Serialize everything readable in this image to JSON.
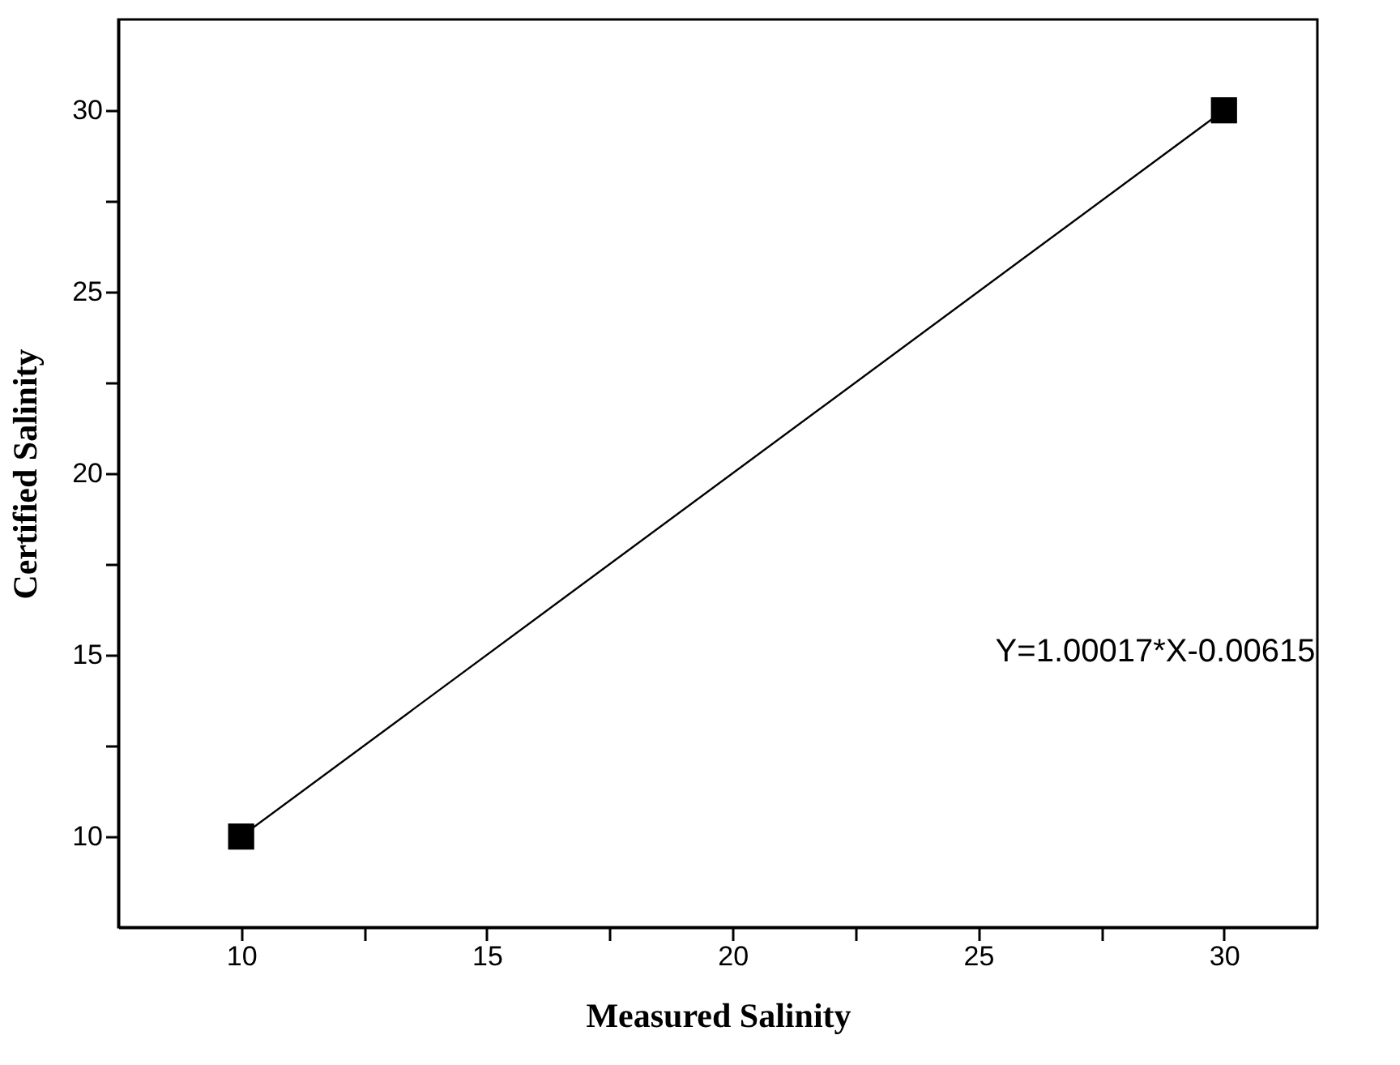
{
  "chart_data": {
    "type": "line",
    "xlabel": "Measured Salinity",
    "ylabel": "Certified Salinity",
    "x": [
      10,
      30
    ],
    "series": [
      {
        "color": "#000000",
        "values": [
          10,
          30
        ]
      }
    ],
    "marker": "square",
    "line_style": "solid",
    "grid": false,
    "xlim": [
      7.5,
      31.9
    ],
    "ylim": [
      7.5,
      32.5
    ],
    "xticks": [
      10,
      {
        "value": 12.5,
        "label": null
      },
      15,
      {
        "value": 17.5,
        "label": null
      },
      20,
      {
        "value": 22.5,
        "label": null
      },
      25,
      {
        "value": 27.5,
        "label": null
      },
      30
    ],
    "yticks": [
      10,
      {
        "value": 12.5,
        "label": null
      },
      15,
      {
        "value": 17.5,
        "label": null
      },
      20,
      {
        "value": 22.5,
        "label": null
      },
      25,
      {
        "value": 27.5,
        "label": null
      },
      30
    ],
    "annotations": [
      "Y=1.00017*X-0.00615"
    ]
  }
}
